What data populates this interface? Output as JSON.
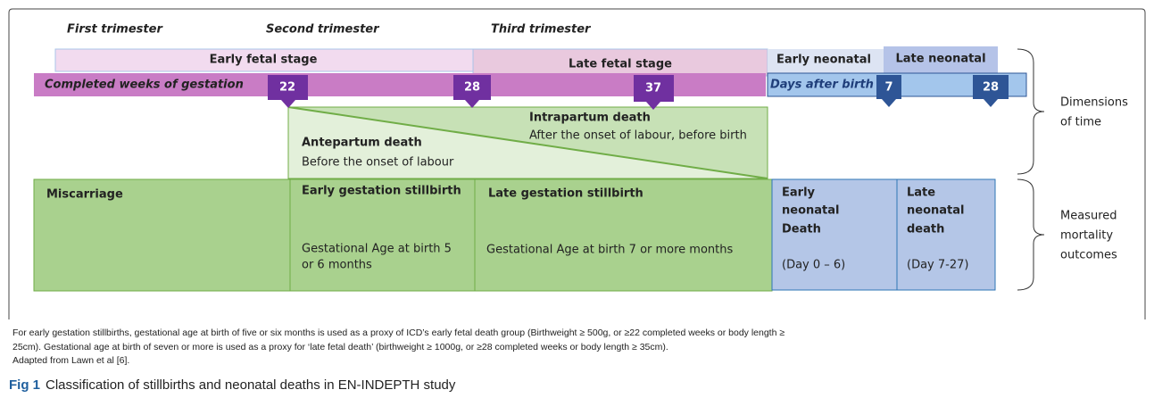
{
  "trimesters": [
    "First trimester",
    "Second trimester",
    "Third trimester"
  ],
  "stages": {
    "early_fetal": "Early fetal stage",
    "late_fetal": "Late fetal stage",
    "early_neonatal": "Early neonatal",
    "late_neonatal": "Late neonatal"
  },
  "gestation_bar": "Completed weeks of gestation",
  "birth_bar": "Days after birth",
  "week_markers": [
    "22",
    "28",
    "37"
  ],
  "day_markers": [
    "7",
    "28"
  ],
  "intrapartum": {
    "title": "Intrapartum death",
    "desc": "After the onset of labour, before birth"
  },
  "antepartum": {
    "title": "Antepartum death",
    "desc": "Before the onset of labour"
  },
  "outcomes": {
    "miscarriage": "Miscarriage",
    "early_stillbirth": {
      "title": "Early gestation stillbirth",
      "desc": [
        "Gestational Age at birth 5",
        "or 6 months"
      ]
    },
    "late_stillbirth": {
      "title": "Late gestation stillbirth",
      "desc": "Gestational Age at birth 7 or more months"
    },
    "early_neonatal": {
      "title": [
        "Early",
        "neonatal",
        "Death"
      ],
      "desc": "(Day 0 – 6)"
    },
    "late_neonatal": {
      "title": [
        "Late",
        "neonatal",
        "death"
      ],
      "desc": "(Day 7-27)"
    }
  },
  "side_labels": {
    "time": [
      "Dimensions",
      "of time"
    ],
    "mortality": [
      "Measured",
      "mortality",
      "outcomes"
    ]
  },
  "notes": [
    "For early gestation stillbirths, gestational age at birth of five or six months is used as a proxy of ICD’s early fetal death group (Birthweight ≥ 500g, or ≥22 completed weeks or body length ≥",
    "25cm). Gestational age at birth of seven or more is used as a proxy for ‘late fetal death’ (birthweight ≥ 1000g, or ≥28 completed weeks or body length ≥ 35cm).",
    "Adapted from Lawn et al [6]."
  ],
  "figure": {
    "label": "Fig 1",
    "caption": "Classification of stillbirths and neonatal deaths in EN-INDEPTH study"
  }
}
